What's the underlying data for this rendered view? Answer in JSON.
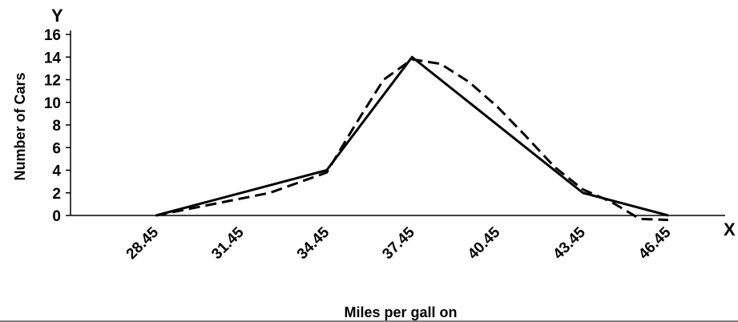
{
  "chart_data": {
    "type": "line",
    "title": "",
    "xlabel": "Miles per gall on",
    "ylabel": "Number of Cars",
    "x_axis_letter": "X",
    "y_axis_letter": "Y",
    "categories": [
      "28.45",
      "31.45",
      "34.45",
      "37.45",
      "40.45",
      "43.45",
      "46.45"
    ],
    "x_values": [
      28.45,
      31.45,
      34.45,
      37.45,
      40.45,
      43.45,
      46.45
    ],
    "xlim": [
      25.45,
      48.45
    ],
    "ylim": [
      0,
      16
    ],
    "yticks": [
      0,
      2,
      4,
      6,
      8,
      10,
      12,
      14,
      16
    ],
    "grid": false,
    "series": [
      {
        "style": "solid",
        "color": "#000000",
        "points": [
          [
            28.45,
            0
          ],
          [
            34.45,
            4
          ],
          [
            37.45,
            14
          ],
          [
            43.45,
            2
          ],
          [
            46.45,
            0
          ]
        ]
      },
      {
        "style": "dashed",
        "color": "#000000",
        "points": [
          [
            28.45,
            0
          ],
          [
            30.45,
            1
          ],
          [
            32.45,
            2
          ],
          [
            34.45,
            3.8
          ],
          [
            35.45,
            8
          ],
          [
            36.45,
            12
          ],
          [
            37.45,
            13.8
          ],
          [
            38.45,
            13.4
          ],
          [
            39.45,
            11.8
          ],
          [
            40.45,
            9.6
          ],
          [
            41.45,
            7
          ],
          [
            42.45,
            4.3
          ],
          [
            43.45,
            2.3
          ],
          [
            44.45,
            1.2
          ],
          [
            45.45,
            -0.3
          ],
          [
            46.45,
            -0.4
          ]
        ]
      }
    ]
  }
}
